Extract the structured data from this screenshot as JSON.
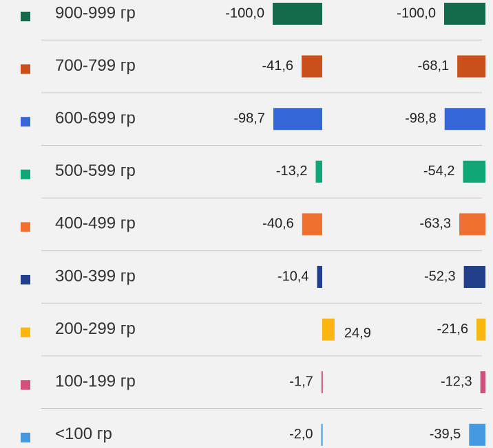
{
  "chart_data": {
    "type": "bar",
    "categories": [
      "900-999 гр",
      "700-799 гр",
      "600-699 гр",
      "500-599 гр",
      "400-499 гр",
      "300-399 гр",
      "200-299 гр",
      "100-199 гр",
      "<100 гр"
    ],
    "colors": [
      "#136b4c",
      "#c9501a",
      "#3466d6",
      "#10a678",
      "#f07030",
      "#223f8c",
      "#fbb60f",
      "#d2507d",
      "#4499e1"
    ],
    "series": [
      {
        "values": [
          -100.0,
          -41.6,
          -98.7,
          -13.2,
          -40.6,
          -10.4,
          24.9,
          -1.7,
          -2.0
        ],
        "value_labels": [
          "-100,0",
          "-41,6",
          "-98,7",
          "-13,2",
          "-40,6",
          "-10,4",
          "24,9",
          "-1,7",
          "-2,0"
        ]
      },
      {
        "values": [
          -100.0,
          -68.1,
          -98.8,
          -54.2,
          -63.3,
          -52.3,
          -21.6,
          -12.3,
          -39.5
        ],
        "value_labels": [
          "-100,0",
          "-68,1",
          "-98,8",
          "-54,2",
          "-63,3",
          "-52,3",
          "-21,6",
          "-12,3",
          "-39,5"
        ]
      }
    ]
  }
}
